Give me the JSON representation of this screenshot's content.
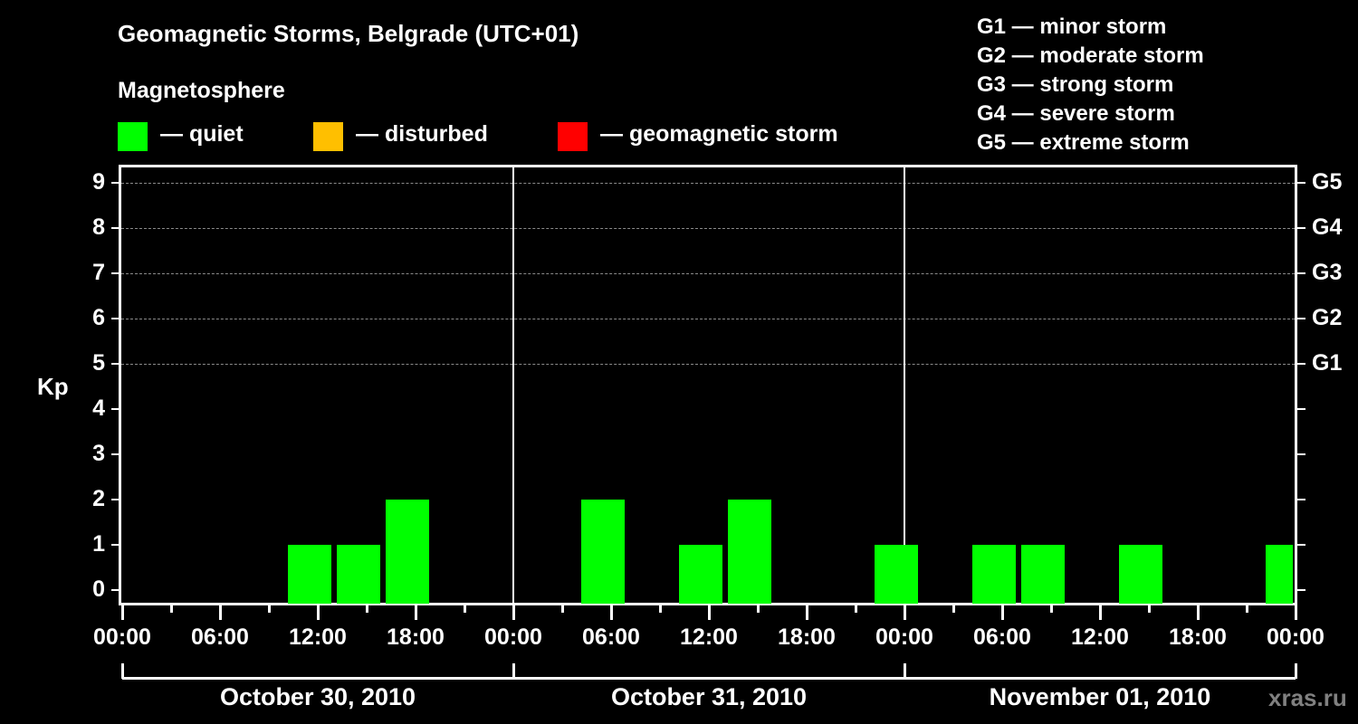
{
  "header": {
    "title": "Geomagnetic Storms, Belgrade (UTC+01)",
    "subtitle": "Magnetosphere"
  },
  "legend": {
    "items": [
      {
        "label": "— quiet",
        "color": "#00ff00"
      },
      {
        "label": "— disturbed",
        "color": "#ffbf00"
      },
      {
        "label": "— geomagnetic storm",
        "color": "#ff0000"
      }
    ],
    "storm_scale": [
      "G1 — minor storm",
      "G2 — moderate storm",
      "G3 — strong storm",
      "G4 — severe storm",
      "G5 — extreme storm"
    ]
  },
  "axes": {
    "ylabel": "Kp",
    "yticks": [
      "0",
      "1",
      "2",
      "3",
      "4",
      "5",
      "6",
      "7",
      "8",
      "9"
    ],
    "right_ticks": [
      {
        "kp": 5,
        "label": "G1"
      },
      {
        "kp": 6,
        "label": "G2"
      },
      {
        "kp": 7,
        "label": "G3"
      },
      {
        "kp": 8,
        "label": "G4"
      },
      {
        "kp": 9,
        "label": "G5"
      }
    ],
    "xticks": [
      "00:00",
      "06:00",
      "12:00",
      "18:00",
      "00:00",
      "06:00",
      "12:00",
      "18:00",
      "00:00",
      "06:00",
      "12:00",
      "18:00",
      "00:00"
    ],
    "dates": [
      "October 30, 2010",
      "October 31, 2010",
      "November 01, 2010"
    ]
  },
  "credit": "xras.ru",
  "chart_data": {
    "type": "bar",
    "title": "Geomagnetic Storms, Belgrade (UTC+01)",
    "subtitle": "Magnetosphere",
    "xlabel": "",
    "ylabel": "Kp",
    "ylim": [
      0,
      9
    ],
    "bin_hours": 3,
    "grid": true,
    "legend_position": "top",
    "categories": [
      "Oct 30 00:00",
      "Oct 30 03:00",
      "Oct 30 06:00",
      "Oct 30 09:00",
      "Oct 30 12:00",
      "Oct 30 15:00",
      "Oct 30 18:00",
      "Oct 30 21:00",
      "Oct 31 00:00",
      "Oct 31 03:00",
      "Oct 31 06:00",
      "Oct 31 09:00",
      "Oct 31 12:00",
      "Oct 31 15:00",
      "Oct 31 18:00",
      "Oct 31 21:00",
      "Nov 01 00:00",
      "Nov 01 03:00",
      "Nov 01 06:00",
      "Nov 01 09:00",
      "Nov 01 12:00",
      "Nov 01 15:00",
      "Nov 01 18:00",
      "Nov 01 21:00"
    ],
    "values": [
      0,
      0,
      0,
      1,
      1,
      2,
      0,
      0,
      0,
      2,
      0,
      1,
      2,
      0,
      0,
      1,
      0,
      1,
      1,
      0,
      1,
      0,
      0,
      1
    ],
    "status": "quiet",
    "colors": {
      "quiet": "#00ff00",
      "disturbed": "#ffbf00",
      "storm": "#ff0000"
    }
  }
}
